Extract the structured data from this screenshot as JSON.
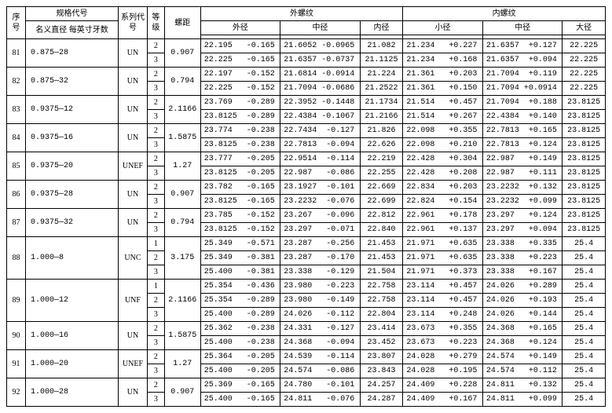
{
  "headers": {
    "seq": "序号",
    "spec": "规格代号",
    "spec_sub": "名义直径   每英寸牙数",
    "series": "系列代号",
    "grade": "等级",
    "pitch": "螺距",
    "ext": "外螺纹",
    "ext_outer": "外径",
    "ext_mid": "中径",
    "ext_inner": "内径",
    "int": "内螺纹",
    "int_minor": "小径",
    "int_mid": "中径",
    "int_major": "大径"
  },
  "rows": [
    {
      "seq": "81",
      "spec": "0.875—28",
      "series": "UN",
      "pitch": "0.907",
      "grades": [
        {
          "g": "2",
          "eo": [
            "22.195",
            "-0.165"
          ],
          "em": [
            "21.6052",
            "-0.0965"
          ],
          "ei": "21.082",
          "im": [
            "21.234",
            "+0.227"
          ],
          "imd": [
            "21.6357",
            "+0.127"
          ],
          "ij": "22.225"
        },
        {
          "g": "3",
          "eo": [
            "22.225",
            "-0.165"
          ],
          "em": [
            "21.6357",
            "-0.0737"
          ],
          "ei": "21.1125",
          "im": [
            "21.234",
            "+0.168"
          ],
          "imd": [
            "21.6357",
            "+0.094"
          ],
          "ij": "22.225"
        }
      ]
    },
    {
      "seq": "82",
      "spec": "0.875—32",
      "series": "UN",
      "pitch": "0.794",
      "grades": [
        {
          "g": "2",
          "eo": [
            "22.197",
            "-0.152"
          ],
          "em": [
            "21.6814",
            "-0.0914"
          ],
          "ei": "21.224",
          "im": [
            "21.361",
            "+0.203"
          ],
          "imd": [
            "21.7094",
            "+0.119"
          ],
          "ij": "22.225"
        },
        {
          "g": "3",
          "eo": [
            "22.225",
            "-0.152"
          ],
          "em": [
            "21.7094",
            "-0.0686"
          ],
          "ei": "21.2522",
          "im": [
            "21.361",
            "+0.150"
          ],
          "imd": [
            "21.7094",
            "+0.0914"
          ],
          "ij": "22.225"
        }
      ]
    },
    {
      "seq": "83",
      "spec": "0.9375—12",
      "series": "UN",
      "pitch": "2.1166",
      "grades": [
        {
          "g": "2",
          "eo": [
            "23.769",
            "-0.289"
          ],
          "em": [
            "22.3952",
            "-0.1448"
          ],
          "ei": "21.1734",
          "im": [
            "21.514",
            "+0.457"
          ],
          "imd": [
            "21.7094",
            "+0.188"
          ],
          "ij": "23.8125"
        },
        {
          "g": "3",
          "eo": [
            "23.8125",
            "-0.289"
          ],
          "em": [
            "22.4384",
            "-0.1067"
          ],
          "ei": "21.2166",
          "im": [
            "21.514",
            "+0.267"
          ],
          "imd": [
            "22.4384",
            "+0.140"
          ],
          "ij": "23.8125"
        }
      ]
    },
    {
      "seq": "84",
      "spec": "0.9375—16",
      "series": "UN",
      "pitch": "1.5875",
      "grades": [
        {
          "g": "2",
          "eo": [
            "23.774",
            "-0.238"
          ],
          "em": [
            "22.7434",
            "-0.127"
          ],
          "ei": "21.826",
          "im": [
            "22.098",
            "+0.355"
          ],
          "imd": [
            "22.7813",
            "+0.165"
          ],
          "ij": "23.8125"
        },
        {
          "g": "3",
          "eo": [
            "23.8125",
            "-0.238"
          ],
          "em": [
            "22.7813",
            "-0.094"
          ],
          "ei": "22.626",
          "im": [
            "22.098",
            "+0.210"
          ],
          "imd": [
            "22.7813",
            "+0.124"
          ],
          "ij": "23.8125"
        }
      ]
    },
    {
      "seq": "85",
      "spec": "0.9375—20",
      "series": "UNEF",
      "pitch": "1.27",
      "grades": [
        {
          "g": "2",
          "eo": [
            "23.777",
            "-0.205"
          ],
          "em": [
            "22.9514",
            "-0.114"
          ],
          "ei": "22.219",
          "im": [
            "22.428",
            "+0.304"
          ],
          "imd": [
            "22.987",
            "+0.149"
          ],
          "ij": "23.8125"
        },
        {
          "g": "3",
          "eo": [
            "23.8125",
            "-0.205"
          ],
          "em": [
            "22.987",
            "-0.086"
          ],
          "ei": "22.255",
          "im": [
            "22.428",
            "+0.208"
          ],
          "imd": [
            "22.987",
            "+0.111"
          ],
          "ij": "23.8125"
        }
      ]
    },
    {
      "seq": "86",
      "spec": "0.9375—28",
      "series": "UN",
      "pitch": "0.907",
      "grades": [
        {
          "g": "2",
          "eo": [
            "23.782",
            "-0.165"
          ],
          "em": [
            "23.1927",
            "-0.101"
          ],
          "ei": "22.669",
          "im": [
            "22.834",
            "+0.203"
          ],
          "imd": [
            "23.2232",
            "+0.132"
          ],
          "ij": "23.8125"
        },
        {
          "g": "3",
          "eo": [
            "23.8125",
            "-0.165"
          ],
          "em": [
            "23.2232",
            "-0.076"
          ],
          "ei": "22.699",
          "im": [
            "22.824",
            "+0.154"
          ],
          "imd": [
            "23.2232",
            "+0.099"
          ],
          "ij": "23.8125"
        }
      ]
    },
    {
      "seq": "87",
      "spec": "0.9375—32",
      "series": "UN",
      "pitch": "0.794",
      "grades": [
        {
          "g": "2",
          "eo": [
            "23.785",
            "-0.152"
          ],
          "em": [
            "23.267",
            "-0.096"
          ],
          "ei": "22.812",
          "im": [
            "22.961",
            "+0.178"
          ],
          "imd": [
            "23.297",
            "+0.124"
          ],
          "ij": "23.8125"
        },
        {
          "g": "3",
          "eo": [
            "23.8125",
            "-0.152"
          ],
          "em": [
            "23.297",
            "-0.071"
          ],
          "ei": "22.840",
          "im": [
            "22.961",
            "+0.137"
          ],
          "imd": [
            "23.297",
            "+0.094"
          ],
          "ij": "23.8125"
        }
      ]
    },
    {
      "seq": "88",
      "spec": "1.000—8",
      "series": "UNC",
      "pitch": "3.175",
      "grades": [
        {
          "g": "1",
          "eo": [
            "25.349",
            "-0.571"
          ],
          "em": [
            "23.287",
            "-0.256"
          ],
          "ei": "21.453",
          "im": [
            "21.971",
            "+0.635"
          ],
          "imd": [
            "23.338",
            "+0.335"
          ],
          "ij": "25.4"
        },
        {
          "g": "2",
          "eo": [
            "25.349",
            "-0.381"
          ],
          "em": [
            "23.287",
            "-0.170"
          ],
          "ei": "21.453",
          "im": [
            "21.971",
            "+0.635"
          ],
          "imd": [
            "23.338",
            "+0.223"
          ],
          "ij": "25.4"
        },
        {
          "g": "3",
          "eo": [
            "25.400",
            "-0.381"
          ],
          "em": [
            "23.338",
            "-0.129"
          ],
          "ei": "21.504",
          "im": [
            "21.971",
            "+0.373"
          ],
          "imd": [
            "23.338",
            "+0.167"
          ],
          "ij": "25.4"
        }
      ]
    },
    {
      "seq": "89",
      "spec": "1.000—12",
      "series": "UNF",
      "pitch": "2.1166",
      "grades": [
        {
          "g": "1",
          "eo": [
            "25.354",
            "-0.436"
          ],
          "em": [
            "23.980",
            "-0.223"
          ],
          "ei": "22.758",
          "im": [
            "23.114",
            "+0.457"
          ],
          "imd": [
            "24.026",
            "+0.289"
          ],
          "ij": "25.4"
        },
        {
          "g": "2",
          "eo": [
            "25.354",
            "-0.289"
          ],
          "em": [
            "23.980",
            "-0.149"
          ],
          "ei": "22.758",
          "im": [
            "23.114",
            "+0.457"
          ],
          "imd": [
            "24.026",
            "+0.193"
          ],
          "ij": "25.4"
        },
        {
          "g": "3",
          "eo": [
            "25.400",
            "-0.289"
          ],
          "em": [
            "24.026",
            "-0.112"
          ],
          "ei": "22.804",
          "im": [
            "23.114",
            "+0.248"
          ],
          "imd": [
            "24.026",
            "+0.144"
          ],
          "ij": "25.4"
        }
      ]
    },
    {
      "seq": "90",
      "spec": "1.000—16",
      "series": "UN",
      "pitch": "1.5875",
      "grades": [
        {
          "g": "2",
          "eo": [
            "25.362",
            "-0.238"
          ],
          "em": [
            "24.331",
            "-0.127"
          ],
          "ei": "23.414",
          "im": [
            "23.673",
            "+0.355"
          ],
          "imd": [
            "24.368",
            "+0.165"
          ],
          "ij": "25.4"
        },
        {
          "g": "3",
          "eo": [
            "25.400",
            "-0.238"
          ],
          "em": [
            "24.368",
            "-0.094"
          ],
          "ei": "23.452",
          "im": [
            "23.673",
            "+0.223"
          ],
          "imd": [
            "24.368",
            "+0.124"
          ],
          "ij": "25.4"
        }
      ]
    },
    {
      "seq": "91",
      "spec": "1.000—20",
      "series": "UNEF",
      "pitch": "1.27",
      "grades": [
        {
          "g": "2",
          "eo": [
            "25.364",
            "-0.205"
          ],
          "em": [
            "24.539",
            "-0.114"
          ],
          "ei": "23.807",
          "im": [
            "24.028",
            "+0.279"
          ],
          "imd": [
            "24.574",
            "+0.149"
          ],
          "ij": "25.4"
        },
        {
          "g": "3",
          "eo": [
            "25.400",
            "-0.205"
          ],
          "em": [
            "24.574",
            "-0.086"
          ],
          "ei": "23.843",
          "im": [
            "24.028",
            "+0.195"
          ],
          "imd": [
            "24.574",
            "+0.112"
          ],
          "ij": "25.4"
        }
      ]
    },
    {
      "seq": "92",
      "spec": "1.000—28",
      "series": "UN",
      "pitch": "0.907",
      "grades": [
        {
          "g": "2",
          "eo": [
            "25.369",
            "-0.165"
          ],
          "em": [
            "24.780",
            "-0.101"
          ],
          "ei": "24.257",
          "im": [
            "24.409",
            "+0.228"
          ],
          "imd": [
            "24.811",
            "+0.132"
          ],
          "ij": "25.4"
        },
        {
          "g": "3",
          "eo": [
            "25.400",
            "-0.165"
          ],
          "em": [
            "24.811",
            "-0.076"
          ],
          "ei": "24.287",
          "im": [
            "24.409",
            "+0.167"
          ],
          "imd": [
            "24.811",
            "+0.099"
          ],
          "ij": "25.4"
        }
      ]
    }
  ]
}
